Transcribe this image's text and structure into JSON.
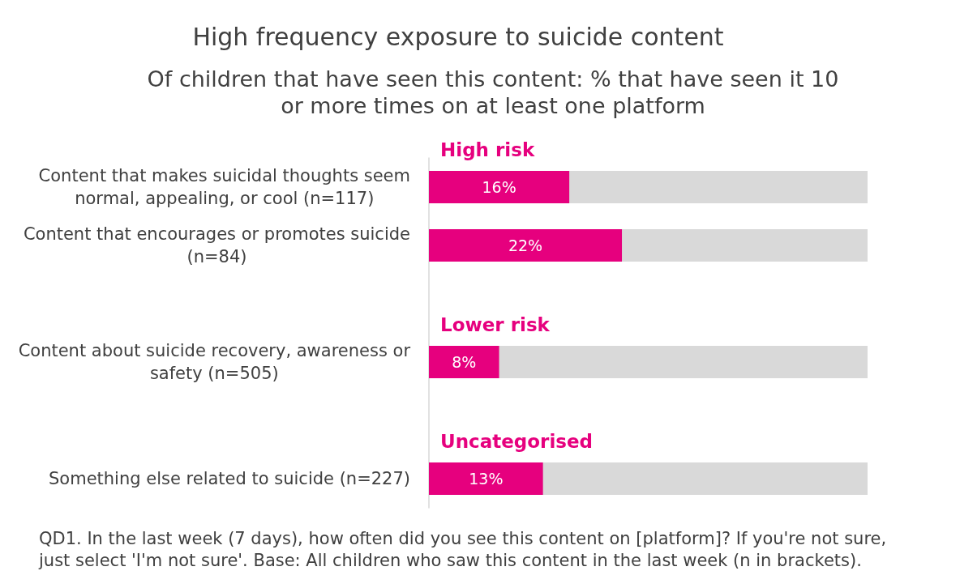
{
  "chart_data": {
    "type": "bar",
    "orientation": "horizontal",
    "title": "High frequency exposure to suicide content",
    "subtitle": "Of children that have seen this content: % that have seen it 10 or more times on at least one platform",
    "categories": [
      "Content that makes suicidal thoughts seem normal, appealing, or cool (n=117)",
      "Content that encourages or promotes suicide (n=84)",
      null,
      "Content about suicide recovery, awareness or safety (n=505)",
      null,
      "Something else related to suicide (n=227)"
    ],
    "series": [
      {
        "color": "#e6007e",
        "values": [
          16,
          22,
          null,
          8,
          null,
          13
        ],
        "value_labels": [
          "16%",
          "22%",
          null,
          "8%",
          null,
          "13%"
        ]
      }
    ],
    "xlim": [
      0,
      50
    ],
    "tick_labels": "y",
    "annotations": [
      "High risk",
      "Lower risk",
      "Uncategorised",
      "QD1. In the last week (7 days), how often did you see this content on [platform]? If you're not sure, just select 'I'm not sure'. Base: All children who saw this content in the last week (n in brackets)."
    ]
  }
}
